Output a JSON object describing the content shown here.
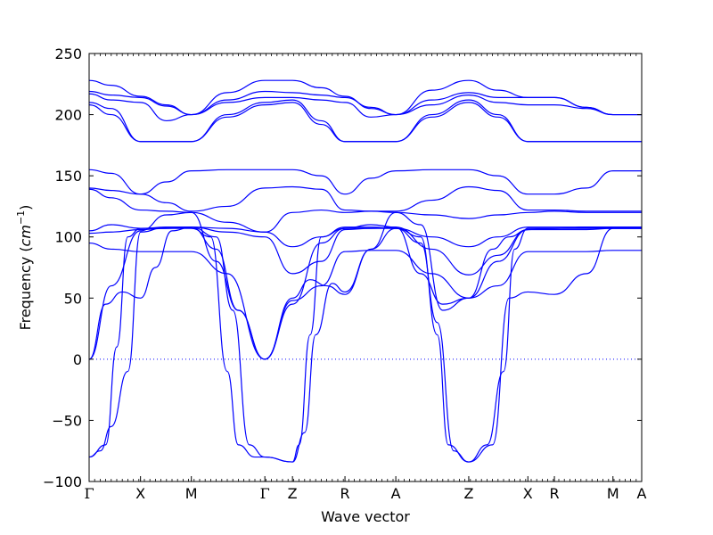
{
  "chart_data": {
    "type": "line",
    "title": "",
    "xlabel": "Wave vector",
    "ylabel": "Frequency ($cm^{-1}$)",
    "ylabel_text": "Frequency (",
    "ylabel_unit": "cm",
    "ylabel_exp": "−1",
    "ylabel_close": ")",
    "ylim": [
      -100,
      250
    ],
    "yticks": [
      -100,
      -50,
      0,
      50,
      100,
      150,
      200,
      250
    ],
    "xlim": [
      0,
      1
    ],
    "high_symmetry_labels": [
      "Γ",
      "X",
      "M",
      "Γ",
      "Z",
      "R",
      "A",
      "Z",
      "X",
      "R",
      "M",
      "A"
    ],
    "high_symmetry_positions": [
      0.0,
      0.093,
      0.185,
      0.318,
      0.368,
      0.463,
      0.555,
      0.687,
      0.794,
      0.842,
      0.948,
      1.0
    ],
    "zero_line": {
      "y": 0,
      "style": "dotted"
    },
    "grid": false,
    "series_color": "#0000ff",
    "series": [
      {
        "x": [
          0,
          0.04,
          0.093,
          0.14,
          0.185,
          0.25,
          0.318,
          0.368,
          0.42,
          0.463,
          0.51,
          0.555,
          0.62,
          0.687,
          0.74,
          0.794,
          0.842,
          0.9,
          0.948,
          1.0
        ],
        "y": [
          228,
          224,
          215,
          208,
          200,
          218,
          228,
          228,
          222,
          215,
          205,
          200,
          220,
          228,
          220,
          214,
          214,
          206,
          200,
          200
        ]
      },
      {
        "x": [
          0,
          0.04,
          0.093,
          0.14,
          0.185,
          0.25,
          0.318,
          0.368,
          0.42,
          0.463,
          0.51,
          0.555,
          0.62,
          0.687,
          0.74,
          0.794,
          0.842,
          0.9,
          0.948,
          1.0
        ],
        "y": [
          219,
          216,
          214,
          207,
          200,
          212,
          219,
          218,
          216,
          214,
          206,
          200,
          212,
          218,
          214,
          214,
          214,
          206,
          200,
          200
        ]
      },
      {
        "x": [
          0,
          0.04,
          0.093,
          0.14,
          0.185,
          0.25,
          0.318,
          0.368,
          0.42,
          0.463,
          0.51,
          0.555,
          0.62,
          0.687,
          0.74,
          0.794,
          0.842,
          0.9,
          0.948,
          1.0
        ],
        "y": [
          217,
          212,
          210,
          195,
          200,
          210,
          214,
          214,
          212,
          210,
          198,
          200,
          208,
          216,
          210,
          208,
          208,
          205,
          200,
          200
        ]
      },
      {
        "x": [
          0,
          0.04,
          0.093,
          0.14,
          0.185,
          0.25,
          0.318,
          0.368,
          0.42,
          0.463,
          0.51,
          0.555,
          0.62,
          0.687,
          0.74,
          0.794,
          0.842,
          0.9,
          0.948,
          1.0
        ],
        "y": [
          210,
          205,
          178,
          178,
          178,
          200,
          210,
          212,
          195,
          178,
          178,
          178,
          200,
          212,
          200,
          178,
          178,
          178,
          178,
          178
        ]
      },
      {
        "x": [
          0,
          0.04,
          0.093,
          0.14,
          0.185,
          0.25,
          0.318,
          0.368,
          0.42,
          0.463,
          0.51,
          0.555,
          0.62,
          0.687,
          0.74,
          0.794,
          0.842,
          0.9,
          0.948,
          1.0
        ],
        "y": [
          208,
          200,
          178,
          178,
          178,
          198,
          208,
          210,
          192,
          178,
          178,
          178,
          198,
          210,
          198,
          178,
          178,
          178,
          178,
          178
        ]
      },
      {
        "x": [
          0,
          0.04,
          0.093,
          0.14,
          0.185,
          0.25,
          0.318,
          0.368,
          0.42,
          0.463,
          0.51,
          0.555,
          0.62,
          0.687,
          0.74,
          0.794,
          0.842,
          0.9,
          0.948,
          1.0
        ],
        "y": [
          155,
          152,
          135,
          145,
          154,
          155,
          155,
          155,
          150,
          135,
          148,
          154,
          155,
          155,
          150,
          135,
          135,
          140,
          154,
          154
        ]
      },
      {
        "x": [
          0,
          0.04,
          0.093,
          0.14,
          0.185,
          0.25,
          0.318,
          0.368,
          0.42,
          0.463,
          0.51,
          0.555,
          0.62,
          0.687,
          0.74,
          0.794,
          0.842,
          0.9,
          0.948,
          1.0
        ],
        "y": [
          140,
          138,
          135,
          128,
          121,
          125,
          140,
          141,
          139,
          122,
          121,
          121,
          130,
          141,
          138,
          122,
          122,
          121,
          121,
          121
        ]
      },
      {
        "x": [
          0,
          0.04,
          0.093,
          0.14,
          0.185,
          0.25,
          0.318,
          0.368,
          0.42,
          0.463,
          0.51,
          0.555,
          0.62,
          0.687,
          0.74,
          0.794,
          0.842,
          0.9,
          0.948,
          1.0
        ],
        "y": [
          139,
          132,
          122,
          121,
          120,
          112,
          104,
          120,
          122,
          120,
          121,
          120,
          118,
          115,
          118,
          120,
          121,
          120,
          120,
          120
        ]
      },
      {
        "x": [
          0,
          0.04,
          0.093,
          0.14,
          0.185,
          0.25,
          0.318,
          0.368,
          0.42,
          0.463,
          0.51,
          0.555,
          0.62,
          0.687,
          0.74,
          0.794,
          0.842,
          0.9,
          0.948,
          1.0
        ],
        "y": [
          105,
          110,
          107,
          108,
          108,
          107,
          104,
          92,
          100,
          108,
          108,
          107,
          100,
          92,
          100,
          108,
          108,
          108,
          108,
          108
        ]
      },
      {
        "x": [
          0,
          0.04,
          0.093,
          0.14,
          0.185,
          0.25,
          0.318,
          0.368,
          0.42,
          0.463,
          0.51,
          0.555,
          0.62,
          0.687,
          0.74,
          0.794,
          0.842,
          0.9,
          0.948,
          1.0
        ],
        "y": [
          103,
          104,
          106,
          107,
          108,
          104,
          100,
          70,
          80,
          106,
          107,
          108,
          90,
          69,
          85,
          106,
          107,
          108,
          108,
          108
        ]
      },
      {
        "x": [
          0,
          0.04,
          0.093,
          0.14,
          0.185,
          0.25,
          0.318,
          0.368,
          0.42,
          0.463,
          0.51,
          0.555,
          0.62,
          0.687,
          0.74,
          0.794,
          0.842,
          0.9,
          0.948,
          1.0
        ],
        "y": [
          95,
          90,
          88,
          88,
          88,
          70,
          0,
          48,
          60,
          88,
          89,
          89,
          70,
          50,
          60,
          88,
          88,
          88,
          89,
          89
        ]
      },
      {
        "x": [
          0,
          0.03,
          0.06,
          0.093,
          0.12,
          0.15,
          0.185,
          0.23,
          0.26,
          0.29,
          0.318,
          0.368,
          0.39,
          0.41,
          0.44,
          0.463,
          0.51,
          0.555,
          0.6,
          0.63,
          0.66,
          0.687,
          0.73,
          0.76,
          0.794,
          0.842,
          0.9,
          0.948,
          1.0
        ],
        "y": [
          0,
          45,
          55,
          50,
          75,
          105,
          108,
          100,
          40,
          -70,
          -80,
          -84,
          -60,
          20,
          62,
          55,
          90,
          107,
          95,
          30,
          -75,
          -84,
          -70,
          50,
          55,
          53,
          70,
          107,
          107
        ]
      },
      {
        "x": [
          0,
          0.03,
          0.05,
          0.07,
          0.093,
          0.14,
          0.185,
          0.22,
          0.25,
          0.27,
          0.3,
          0.318,
          0.368,
          0.38,
          0.4,
          0.42,
          0.463,
          0.51,
          0.555,
          0.6,
          0.63,
          0.65,
          0.687,
          0.72,
          0.75,
          0.77,
          0.794,
          0.842,
          0.9,
          0.948,
          1.0
        ],
        "y": [
          -80,
          -70,
          10,
          100,
          107,
          107,
          107,
          100,
          -10,
          -70,
          -80,
          -80,
          -84,
          -70,
          20,
          100,
          107,
          107,
          107,
          100,
          20,
          -70,
          -84,
          -70,
          -10,
          90,
          107,
          107,
          107,
          107,
          107
        ]
      },
      {
        "x": [
          0,
          0.02,
          0.04,
          0.07,
          0.093,
          0.14,
          0.185,
          0.23,
          0.27,
          0.318,
          0.368,
          0.4,
          0.43,
          0.463,
          0.51,
          0.555,
          0.6,
          0.64,
          0.687,
          0.73,
          0.76,
          0.794,
          0.842,
          0.9,
          0.948,
          1.0
        ],
        "y": [
          -80,
          -75,
          -55,
          -10,
          104,
          108,
          108,
          90,
          40,
          0,
          50,
          65,
          60,
          53,
          90,
          120,
          110,
          40,
          50,
          90,
          100,
          106,
          106,
          106,
          107,
          107
        ]
      },
      {
        "x": [
          0,
          0.04,
          0.093,
          0.14,
          0.185,
          0.23,
          0.27,
          0.318,
          0.368,
          0.42,
          0.463,
          0.51,
          0.555,
          0.6,
          0.64,
          0.687,
          0.74,
          0.794,
          0.842,
          0.9,
          0.948,
          1.0
        ],
        "y": [
          0,
          60,
          105,
          118,
          120,
          80,
          40,
          0,
          45,
          95,
          107,
          110,
          108,
          70,
          45,
          50,
          80,
          106,
          107,
          108,
          108,
          108
        ]
      }
    ]
  }
}
